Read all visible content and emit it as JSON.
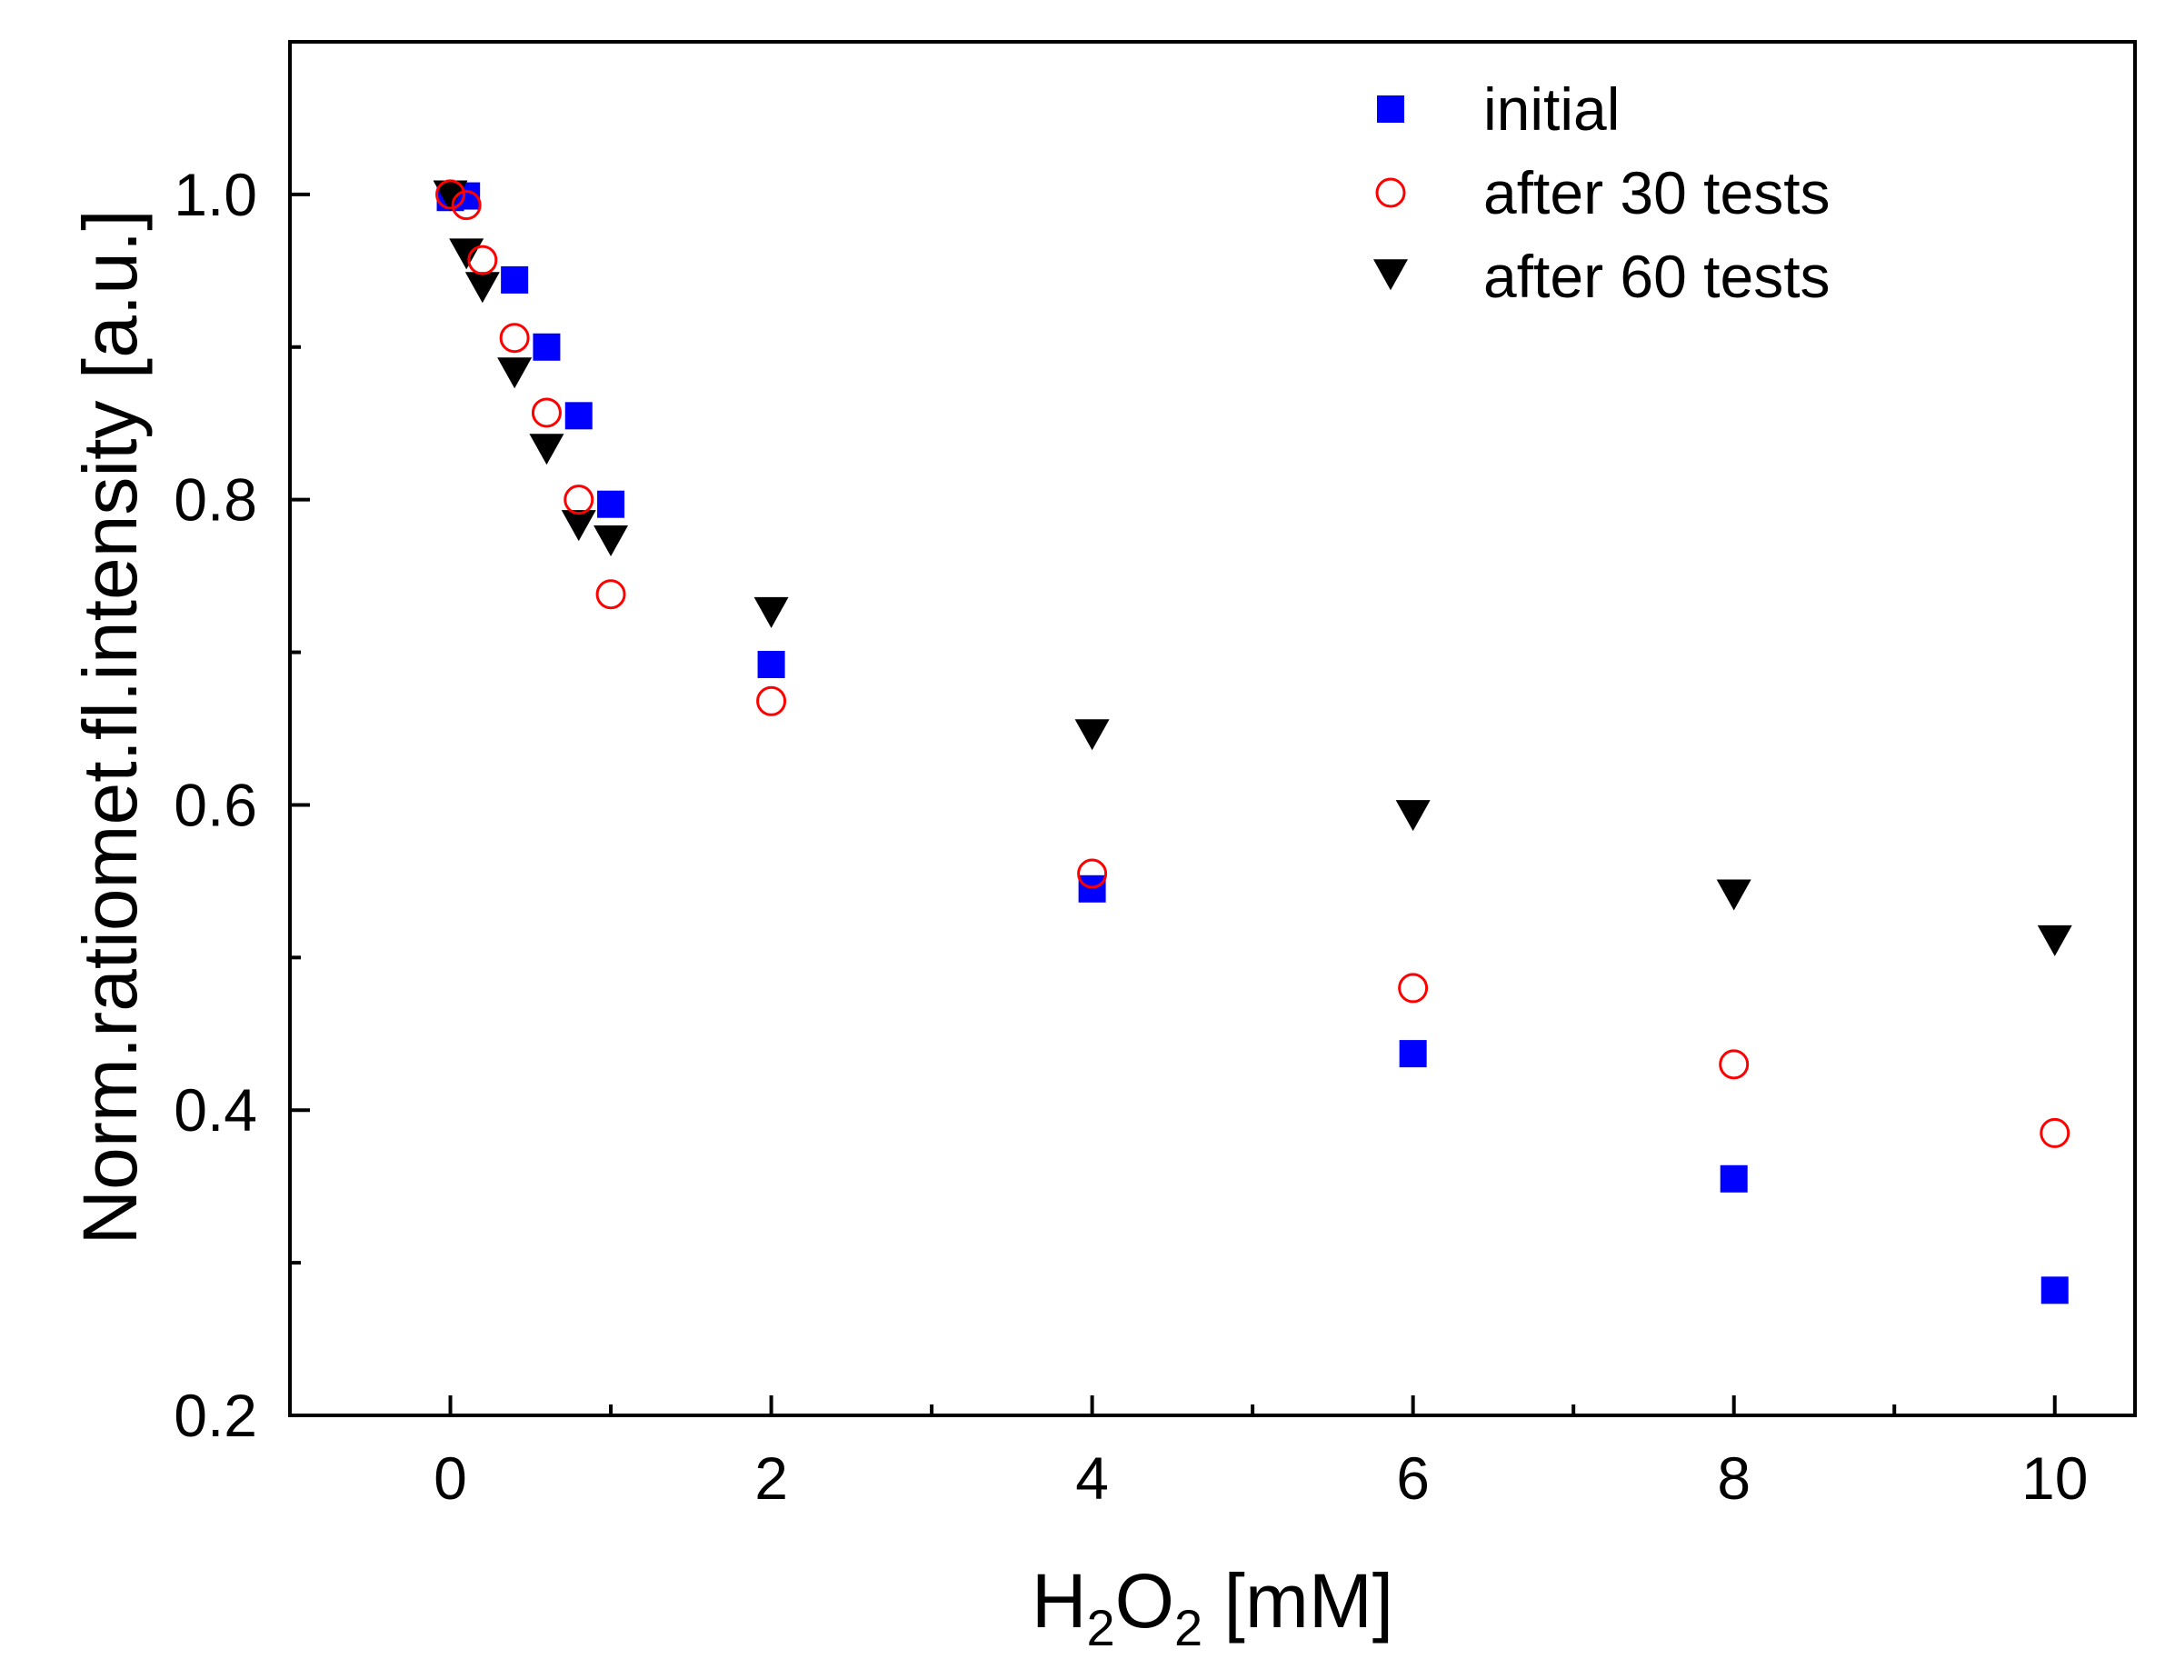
{
  "chart_data": {
    "type": "scatter",
    "title": "",
    "xlabel": {
      "main": "H",
      "sub1": "2",
      "mid": "O",
      "sub2": "2",
      "unit": " [mM]"
    },
    "ylabel": "Norm.ratiomet.fl.intensity [a.u.]",
    "xlim": [
      -1,
      10.5
    ],
    "ylim": [
      0.2,
      1.1
    ],
    "x_ticks": [
      0,
      2,
      4,
      6,
      8,
      10
    ],
    "x_tick_labels": [
      "0",
      "2",
      "4",
      "6",
      "8",
      "10"
    ],
    "x_minor_ticks": [
      1,
      3,
      5,
      7,
      9
    ],
    "y_ticks": [
      0.2,
      0.4,
      0.6,
      0.8,
      1.0
    ],
    "y_tick_labels": [
      "0.2",
      "0.4",
      "0.6",
      "0.8",
      "1.0"
    ],
    "y_minor_ticks": [
      0.3,
      0.5,
      0.7,
      0.9
    ],
    "grid": false,
    "legend_position": "top-right",
    "series": [
      {
        "name": "initial",
        "marker": "square",
        "color": "#0000ff",
        "x": [
          0,
          0.1,
          0.4,
          0.6,
          0.8,
          1,
          2,
          4,
          6,
          8,
          10
        ],
        "y": [
          0.998,
          0.999,
          0.944,
          0.9,
          0.855,
          0.797,
          0.692,
          0.545,
          0.437,
          0.355,
          0.282
        ]
      },
      {
        "name": "after 30 tests",
        "marker": "circle-open",
        "color": "#ff0000",
        "x": [
          0,
          0.1,
          0.2,
          0.4,
          0.6,
          0.8,
          1,
          2,
          4,
          6,
          8,
          10
        ],
        "y": [
          1.0,
          0.993,
          0.957,
          0.906,
          0.857,
          0.8,
          0.738,
          0.668,
          0.555,
          0.48,
          0.43,
          0.385
        ]
      },
      {
        "name": "after 60 tests",
        "marker": "triangle-down",
        "color": "#000000",
        "x": [
          0,
          0.1,
          0.2,
          0.4,
          0.6,
          0.8,
          1,
          2,
          4,
          6,
          8,
          10
        ],
        "y": [
          0.998,
          0.96,
          0.938,
          0.882,
          0.832,
          0.782,
          0.772,
          0.725,
          0.645,
          0.592,
          0.54,
          0.51
        ]
      }
    ]
  }
}
